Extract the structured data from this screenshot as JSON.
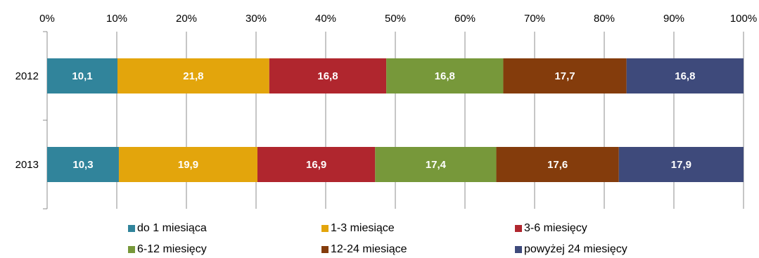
{
  "chart_data": {
    "type": "bar",
    "orientation": "horizontal",
    "stacked": true,
    "title": "",
    "xlabel": "",
    "ylabel": "",
    "xlim": [
      0,
      100
    ],
    "x_ticks": [
      "0%",
      "10%",
      "20%",
      "30%",
      "40%",
      "50%",
      "60%",
      "70%",
      "80%",
      "90%",
      "100%"
    ],
    "x_axis_position": "top",
    "grid": true,
    "legend_position": "bottom",
    "categories": [
      "2012",
      "2013"
    ],
    "series": [
      {
        "name": "do 1 miesiąca",
        "color": "#31849b",
        "values": [
          10.1,
          10.3
        ],
        "labels": [
          "10,1",
          "10,3"
        ]
      },
      {
        "name": "1-3 miesiące",
        "color": "#e3a50c",
        "values": [
          21.8,
          19.9
        ],
        "labels": [
          "21,8",
          "19,9"
        ]
      },
      {
        "name": "3-6 miesięcy",
        "color": "#b0262e",
        "values": [
          16.8,
          16.9
        ],
        "labels": [
          "16,8",
          "16,9"
        ]
      },
      {
        "name": "6-12 miesięcy",
        "color": "#77983a",
        "values": [
          16.8,
          17.4
        ],
        "labels": [
          "16,8",
          "17,4"
        ]
      },
      {
        "name": "12-24 miesiące",
        "color": "#843c0c",
        "values": [
          17.7,
          17.6
        ],
        "labels": [
          "17,7",
          "17,6"
        ]
      },
      {
        "name": "powyżej 24 miesięcy",
        "color": "#3e4a7b",
        "values": [
          16.8,
          17.9
        ],
        "labels": [
          "16,8",
          "17,9"
        ]
      }
    ]
  }
}
